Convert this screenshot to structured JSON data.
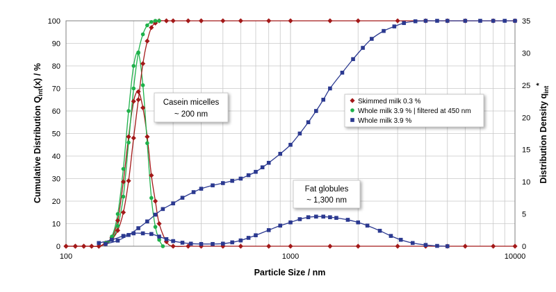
{
  "chart_data": {
    "type": "line",
    "xlabel": "Particle Size / nm",
    "ylabel_left": {
      "main": "Cumulative Distribution Q",
      "sub": "int",
      "tail": "(x) / %"
    },
    "ylabel_right": {
      "main": "Distribution Density  q",
      "sub": "int",
      "sup": "*"
    },
    "x_scale": "log",
    "xlim": [
      100,
      10000
    ],
    "x_ticks": [
      100,
      1000,
      10000
    ],
    "x_tick_labels": [
      "100",
      "1000",
      "10000"
    ],
    "ylim_left": [
      0,
      100
    ],
    "y_ticks_left": [
      0,
      10,
      20,
      30,
      40,
      50,
      60,
      70,
      80,
      90,
      100
    ],
    "y_tick_labels_left": [
      "0",
      "10",
      "20",
      "30",
      "40",
      "50",
      "60",
      "70",
      "80",
      "90",
      "100"
    ],
    "ylim_right": [
      0,
      35
    ],
    "y_ticks_right": [
      0,
      5,
      10,
      15,
      20,
      25,
      30,
      35
    ],
    "y_tick_labels_right": [
      "0",
      "5",
      "10",
      "15",
      "20",
      "25",
      "30",
      "35"
    ],
    "grid": true,
    "legend_position": "center-right",
    "series": [
      {
        "name": "Skimmed milk 0.3 %",
        "color": "#A31919",
        "marker": "diamond",
        "cumulative": {
          "x": [
            100,
            110,
            120,
            130,
            140,
            150,
            160,
            170,
            180,
            190,
            200,
            210,
            220,
            230,
            240,
            250,
            260,
            280,
            300,
            350,
            400,
            500,
            600,
            800,
            1000,
            1500,
            2000,
            3000,
            4000,
            5000,
            6000,
            8000,
            10000
          ],
          "y": [
            0,
            0,
            0,
            0,
            0,
            1,
            3,
            7,
            15,
            29,
            48,
            65,
            81,
            91,
            97,
            99,
            100,
            100,
            100,
            100,
            100,
            100,
            100,
            100,
            100,
            100,
            100,
            100,
            100,
            100,
            100,
            100,
            100
          ]
        },
        "density": {
          "x": [
            100,
            110,
            120,
            130,
            140,
            150,
            160,
            170,
            180,
            190,
            200,
            210,
            220,
            230,
            240,
            250,
            260,
            280,
            300,
            350,
            400,
            500,
            600,
            800,
            1000,
            1500,
            2000,
            3000,
            4000,
            5000,
            6000,
            8000,
            10000
          ],
          "y": [
            0,
            0,
            0,
            0,
            0,
            0.5,
            1.3,
            4,
            10,
            17,
            22.5,
            24,
            21.5,
            17,
            11,
            7,
            3.5,
            0.7,
            0,
            0,
            0,
            0,
            0,
            0,
            0,
            0,
            0,
            0,
            0,
            0,
            0,
            0,
            0
          ]
        }
      },
      {
        "name": "Whole milk 3.9 % | filtered at 450 nm",
        "color": "#1EB14A",
        "marker": "circle",
        "cumulative": {
          "x": [
            150,
            160,
            170,
            180,
            190,
            200,
            210,
            220,
            230,
            240,
            250,
            260
          ],
          "y": [
            1,
            3,
            9,
            22,
            46,
            70,
            86,
            94,
            98,
            99.5,
            100,
            100
          ]
        },
        "density": {
          "x": [
            150,
            160,
            170,
            180,
            190,
            200,
            210,
            220,
            230,
            240,
            250,
            260,
            270
          ],
          "y": [
            0.5,
            1.5,
            5,
            12,
            21,
            28,
            30,
            25,
            16,
            7.5,
            3,
            1,
            0
          ]
        }
      },
      {
        "name": "Whole milk 3.9 %",
        "color": "#2B3990",
        "marker": "square",
        "cumulative": {
          "x": [
            150,
            170,
            190,
            210,
            230,
            250,
            270,
            300,
            330,
            370,
            400,
            450,
            500,
            550,
            600,
            650,
            700,
            750,
            800,
            900,
            1000,
            1100,
            1200,
            1300,
            1400,
            1500,
            1700,
            1900,
            2100,
            2300,
            2600,
            2900,
            3200,
            3600,
            4000,
            4500,
            5000,
            6000,
            7000,
            8000,
            9000,
            10000
          ],
          "y": [
            1,
            2.5,
            5,
            8,
            11,
            14,
            16.5,
            19,
            21.5,
            24,
            25.5,
            27,
            28,
            29,
            30,
            31.5,
            33,
            35,
            37,
            41,
            45,
            50,
            55,
            60,
            65,
            70,
            77,
            83,
            88,
            92,
            95.5,
            97.5,
            99,
            99.8,
            100,
            100,
            100,
            100,
            100,
            100,
            100,
            100
          ]
        },
        "density": {
          "x": [
            140,
            160,
            180,
            200,
            220,
            240,
            260,
            280,
            300,
            330,
            360,
            400,
            450,
            500,
            550,
            600,
            650,
            700,
            800,
            900,
            1000,
            1100,
            1200,
            1300,
            1400,
            1500,
            1600,
            1800,
            2000,
            2200,
            2500,
            2800,
            3100,
            3500,
            4000,
            4500,
            5000
          ],
          "y": [
            0.5,
            1,
            1.6,
            2,
            2,
            1.9,
            1.5,
            1.1,
            0.8,
            0.55,
            0.4,
            0.35,
            0.35,
            0.4,
            0.6,
            0.9,
            1.3,
            1.7,
            2.5,
            3.2,
            3.7,
            4.2,
            4.5,
            4.6,
            4.6,
            4.5,
            4.4,
            4.1,
            3.7,
            3.2,
            2.4,
            1.6,
            1,
            0.5,
            0.2,
            0.05,
            0
          ]
        }
      }
    ],
    "annotations": [
      {
        "lines": [
          "Casein micelles",
          "~ 200 nm"
        ]
      },
      {
        "lines": [
          "Fat globules",
          "~ 1,300 nm"
        ]
      }
    ]
  }
}
